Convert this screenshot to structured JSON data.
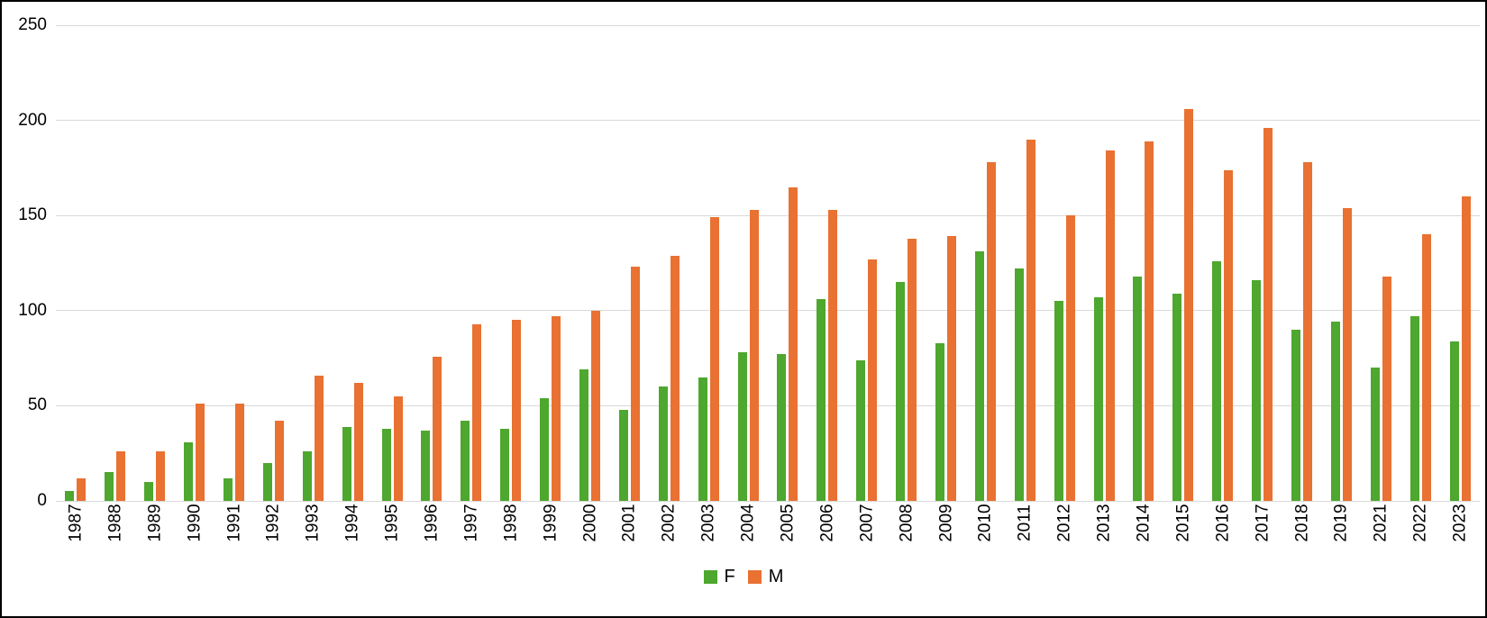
{
  "chart_data": {
    "type": "bar",
    "title": "",
    "xlabel": "",
    "ylabel": "",
    "categories": [
      "1987",
      "1988",
      "1989",
      "1990",
      "1991",
      "1992",
      "1993",
      "1994",
      "1995",
      "1996",
      "1997",
      "1998",
      "1999",
      "2000",
      "2001",
      "2002",
      "2003",
      "2004",
      "2005",
      "2006",
      "2007",
      "2008",
      "2009",
      "2010",
      "2011",
      "2012",
      "2013",
      "2014",
      "2015",
      "2016",
      "2017",
      "2018",
      "2019",
      "2021",
      "2022",
      "2023"
    ],
    "series": [
      {
        "name": "F",
        "color": "#4EA72E",
        "values": [
          5,
          15,
          10,
          31,
          12,
          20,
          26,
          39,
          38,
          37,
          42,
          38,
          54,
          69,
          48,
          60,
          65,
          78,
          77,
          106,
          74,
          115,
          83,
          131,
          122,
          105,
          107,
          118,
          109,
          126,
          116,
          90,
          94,
          70,
          97,
          84
        ]
      },
      {
        "name": "M",
        "color": "#E97132",
        "values": [
          12,
          26,
          26,
          51,
          51,
          42,
          66,
          62,
          55,
          76,
          93,
          95,
          97,
          100,
          123,
          129,
          149,
          153,
          165,
          153,
          127,
          138,
          139,
          178,
          190,
          150,
          184,
          189,
          206,
          174,
          196,
          178,
          154,
          118,
          140,
          160
        ]
      }
    ],
    "ylim": [
      0,
      250
    ],
    "yticks": [
      0,
      50,
      100,
      150,
      200,
      250
    ],
    "grid": "horizontal",
    "gridline_color": "#d9d9d9",
    "legend_position": "bottom-center",
    "background_color": "#ffffff",
    "border_color": "#000000"
  }
}
